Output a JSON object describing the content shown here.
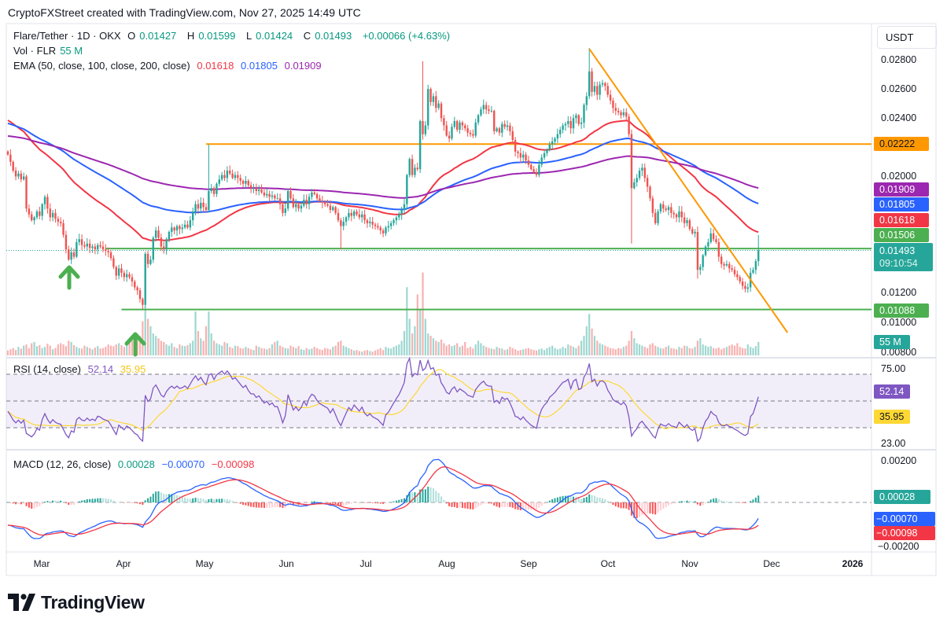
{
  "header": {
    "title": "CryptoFXStreet created with TradingView.com, Nov 27, 2025 14:49 UTC"
  },
  "legend": {
    "symbol": "Flare/Tether · 1D · OKX",
    "o_label": "O",
    "o": "0.01427",
    "h_label": "H",
    "h": "0.01599",
    "l_label": "L",
    "l": "0.01424",
    "c_label": "C",
    "c": "0.01493",
    "change": "+0.00066 (+4.63%)",
    "vol_label": "Vol · FLR",
    "vol": "55 M",
    "ema_label": "EMA (50, close, 100, close, 200, close)",
    "ema50": "0.01618",
    "ema100": "0.01805",
    "ema200": "0.01909",
    "rsi_label": "RSI (14, close)",
    "rsi": "52.14",
    "rsi_ma": "35.95",
    "macd_label": "MACD (12, 26, close)",
    "macd_hist": "0.00028",
    "macd": "−0.00070",
    "macd_signal": "−0.00098"
  },
  "price_axis": {
    "currency_button": "USDT",
    "ticks": [
      "0.02800",
      "0.02600",
      "0.02400",
      "0.02000",
      "0.01200",
      "0.01000",
      "0.00800"
    ],
    "badges": {
      "resistance": "0.02222",
      "ema200": "0.01909",
      "ema100": "0.01805",
      "ema50": "0.01618",
      "level_green": "0.01506",
      "last_price": "0.01493",
      "countdown": "09:10:54",
      "support": "0.01088",
      "volume": "55 M"
    },
    "rsi_ticks": [
      "75.00",
      "23.00"
    ],
    "rsi_badges": {
      "rsi": "52.14",
      "ma": "35.95"
    },
    "macd_ticks": [
      "0.00200",
      "−0.00200"
    ],
    "macd_badges": {
      "hist": "0.00028",
      "macd": "−0.00070",
      "signal": "−0.00098"
    }
  },
  "time_axis": [
    "Mar",
    "Apr",
    "May",
    "Jun",
    "Jul",
    "Aug",
    "Sep",
    "Oct",
    "Nov",
    "Dec",
    "2026"
  ],
  "footer": {
    "brand": "TradingView"
  },
  "colors": {
    "up": "#26a69a",
    "down": "#ef5350",
    "ema50": "#f23645",
    "ema100": "#2962ff",
    "ema200": "#9c27b0",
    "resistance": "#ff9800",
    "support": "#4caf50",
    "rsi": "#7e57c2",
    "rsi_ma": "#fdd835",
    "macd": "#2962ff",
    "signal": "#f23645"
  },
  "chart_data": {
    "type": "candlestick",
    "interval": "1D",
    "first_date": "2025-02-16",
    "last_date": "2025-11-27",
    "ylim": [
      0.0078,
      0.0295
    ],
    "close": [
      0.0215,
      0.021,
      0.0204,
      0.02,
      0.0202,
      0.0198,
      0.02,
      0.0178,
      0.0174,
      0.017,
      0.0172,
      0.0176,
      0.0173,
      0.0181,
      0.0186,
      0.0178,
      0.0172,
      0.0175,
      0.0171,
      0.0169,
      0.0168,
      0.016,
      0.015,
      0.0143,
      0.0148,
      0.0145,
      0.0155,
      0.0157,
      0.0153,
      0.0152,
      0.0154,
      0.0151,
      0.0152,
      0.015,
      0.0153,
      0.0152,
      0.015,
      0.0149,
      0.0148,
      0.0144,
      0.0138,
      0.0132,
      0.0137,
      0.0134,
      0.0131,
      0.0133,
      0.0131,
      0.0128,
      0.0124,
      0.0122,
      0.0116,
      0.0112,
      0.0147,
      0.014,
      0.0143,
      0.0158,
      0.0163,
      0.0158,
      0.0152,
      0.015,
      0.0157,
      0.0162,
      0.0165,
      0.0163,
      0.0166,
      0.0164,
      0.0165,
      0.0167,
      0.0165,
      0.017,
      0.0176,
      0.0181,
      0.0178,
      0.0182,
      0.0179,
      0.0177,
      0.019,
      0.0192,
      0.0188,
      0.0195,
      0.0198,
      0.0201,
      0.0199,
      0.0204,
      0.0202,
      0.0199,
      0.0201,
      0.0199,
      0.0197,
      0.0195,
      0.0197,
      0.0194,
      0.0192,
      0.0192,
      0.019,
      0.0191,
      0.0189,
      0.0187,
      0.0188,
      0.0186,
      0.0187,
      0.0185,
      0.0185,
      0.0181,
      0.0175,
      0.0178,
      0.019,
      0.0185,
      0.0179,
      0.0181,
      0.0178,
      0.018,
      0.0184,
      0.0181,
      0.0186,
      0.0189,
      0.0188,
      0.0185,
      0.0183,
      0.0182,
      0.0181,
      0.018,
      0.0177,
      0.0179,
      0.0175,
      0.017,
      0.0166,
      0.0169,
      0.0172,
      0.0175,
      0.0173,
      0.0176,
      0.0174,
      0.0172,
      0.0174,
      0.017,
      0.0168,
      0.0169,
      0.0167,
      0.0166,
      0.0165,
      0.0163,
      0.0161,
      0.0165,
      0.0166,
      0.0168,
      0.017,
      0.0172,
      0.0174,
      0.0177,
      0.0181,
      0.0201,
      0.0212,
      0.0201,
      0.0206,
      0.0205,
      0.0238,
      0.0229,
      0.0235,
      0.026,
      0.0251,
      0.0255,
      0.0247,
      0.025,
      0.024,
      0.0235,
      0.0228,
      0.0226,
      0.0234,
      0.0238,
      0.0232,
      0.0237,
      0.0235,
      0.0233,
      0.023,
      0.0229,
      0.0228,
      0.0237,
      0.0242,
      0.0246,
      0.0249,
      0.0246,
      0.0245,
      0.0245,
      0.0231,
      0.0233,
      0.023,
      0.0236,
      0.0234,
      0.0235,
      0.0231,
      0.0225,
      0.0217,
      0.0216,
      0.0213,
      0.0215,
      0.0211,
      0.0208,
      0.0205,
      0.0203,
      0.0201,
      0.0208,
      0.0213,
      0.0216,
      0.0218,
      0.0222,
      0.0224,
      0.0226,
      0.0229,
      0.0232,
      0.0235,
      0.0236,
      0.0238,
      0.0233,
      0.024,
      0.0242,
      0.0236,
      0.0237,
      0.0249,
      0.0255,
      0.0272,
      0.0258,
      0.0262,
      0.0256,
      0.0263,
      0.0264,
      0.0262,
      0.0256,
      0.0252,
      0.0247,
      0.0245,
      0.0244,
      0.0242,
      0.0244,
      0.0241,
      0.0229,
      0.0192,
      0.0196,
      0.0199,
      0.0204,
      0.0206,
      0.0199,
      0.0193,
      0.0185,
      0.0175,
      0.0168,
      0.0176,
      0.0181,
      0.0178,
      0.0177,
      0.0179,
      0.0175,
      0.0174,
      0.0172,
      0.0176,
      0.0172,
      0.0168,
      0.017,
      0.0164,
      0.0161,
      0.0162,
      0.0136,
      0.0138,
      0.0146,
      0.0152,
      0.0155,
      0.0161,
      0.0157,
      0.0155,
      0.0145,
      0.014,
      0.0139,
      0.014,
      0.0137,
      0.0136,
      0.0133,
      0.0131,
      0.0128,
      0.0125,
      0.0123,
      0.0124,
      0.0134,
      0.0136,
      0.0142,
      0.01493
    ],
    "notable_highs": [
      {
        "date": "2025-05-03",
        "price": 0.0222
      },
      {
        "date": "2025-07-23",
        "price": 0.0279
      },
      {
        "date": "2025-09-24",
        "price": 0.0288
      },
      {
        "date": "2025-11-27",
        "price": 0.01599
      }
    ],
    "notable_lows": [
      {
        "date": "2025-04-08",
        "price": 0.0109
      },
      {
        "date": "2025-06-22",
        "price": 0.015
      },
      {
        "date": "2025-10-10",
        "price": 0.0154
      },
      {
        "date": "2025-11-04",
        "price": 0.013
      }
    ],
    "volume_millions": [
      20,
      25,
      30,
      22,
      35,
      28,
      40,
      45,
      30,
      50,
      55,
      38,
      42,
      30,
      35,
      48,
      40,
      25,
      30,
      45,
      50,
      45,
      38,
      60,
      55,
      42,
      35,
      30,
      28,
      40,
      35,
      30,
      25,
      32,
      38,
      28,
      30,
      35,
      45,
      40,
      38,
      45,
      50,
      42,
      35,
      48,
      55,
      60,
      70,
      65,
      80,
      140,
      200,
      150,
      120,
      90,
      80,
      70,
      60,
      55,
      45,
      40,
      50,
      35,
      30,
      45,
      40,
      38,
      42,
      50,
      60,
      180,
      100,
      70,
      60,
      120,
      180,
      90,
      60,
      50,
      45,
      40,
      55,
      50,
      35,
      30,
      40,
      38,
      30,
      28,
      35,
      30,
      25,
      22,
      40,
      35,
      30,
      28,
      25,
      30,
      45,
      55,
      60,
      40,
      35,
      30,
      28,
      40,
      35,
      30,
      38,
      25,
      22,
      30,
      25,
      28,
      35,
      30,
      25,
      22,
      30,
      28,
      25,
      35,
      40,
      55,
      60,
      40,
      35,
      30,
      25,
      20,
      22,
      18,
      15,
      20,
      22,
      18,
      15,
      20,
      25,
      30,
      22,
      35,
      30,
      28,
      35,
      40,
      45,
      60,
      100,
      280,
      150,
      90,
      120,
      250,
      190,
      340,
      150,
      90,
      80,
      70,
      60,
      55,
      65,
      50,
      40,
      45,
      38,
      42,
      50,
      35,
      40,
      55,
      30,
      35,
      28,
      45,
      60,
      50,
      40,
      35,
      30,
      28,
      25,
      35,
      30,
      28,
      22,
      25,
      35,
      30,
      25,
      20,
      22,
      25,
      28,
      30,
      25,
      22,
      20,
      25,
      28,
      22,
      30,
      35,
      40,
      30,
      25,
      28,
      35,
      30,
      45,
      40,
      35,
      30,
      40,
      60,
      80,
      120,
      170,
      110,
      80,
      60,
      50,
      45,
      40,
      35,
      30,
      28,
      25,
      30,
      28,
      35,
      40,
      60,
      100,
      70,
      50,
      45,
      40,
      35,
      30,
      45,
      50,
      40,
      35,
      30,
      28,
      35,
      40,
      30,
      28,
      25,
      35,
      30,
      40,
      38,
      30,
      28,
      35,
      60,
      70,
      45,
      40,
      35,
      38,
      30,
      28,
      32,
      25,
      30,
      35,
      40,
      45,
      40,
      50,
      35,
      30,
      28,
      45,
      35,
      30,
      38,
      55
    ],
    "indicators": {
      "ema_periods": [
        50,
        100,
        200
      ],
      "rsi_period": 14,
      "rsi_ma_period": 14,
      "macd": [
        12,
        26,
        9
      ]
    },
    "horizontal_levels": [
      {
        "price": 0.02222,
        "color": "#ff9800",
        "from_date": "2025-05-02"
      },
      {
        "price": 0.01506,
        "color": "#4caf50",
        "from_date": "2025-03-25"
      },
      {
        "price": 0.01088,
        "color": "#4caf50",
        "from_date": "2025-03-31"
      }
    ],
    "trendline": {
      "color": "#ff9800",
      "start": {
        "date": "2025-09-24",
        "price": 0.02875
      },
      "end": {
        "date": "2025-12-08",
        "price": 0.0093
      }
    },
    "arrows": [
      {
        "date": "2025-03-11",
        "direction": "up"
      },
      {
        "date": "2025-04-05",
        "direction": "up"
      }
    ],
    "rsi_levels": [
      70,
      50,
      30
    ],
    "rsi_ylim": [
      23,
      75
    ],
    "macd_ylim": [
      -0.002,
      0.002
    ]
  }
}
